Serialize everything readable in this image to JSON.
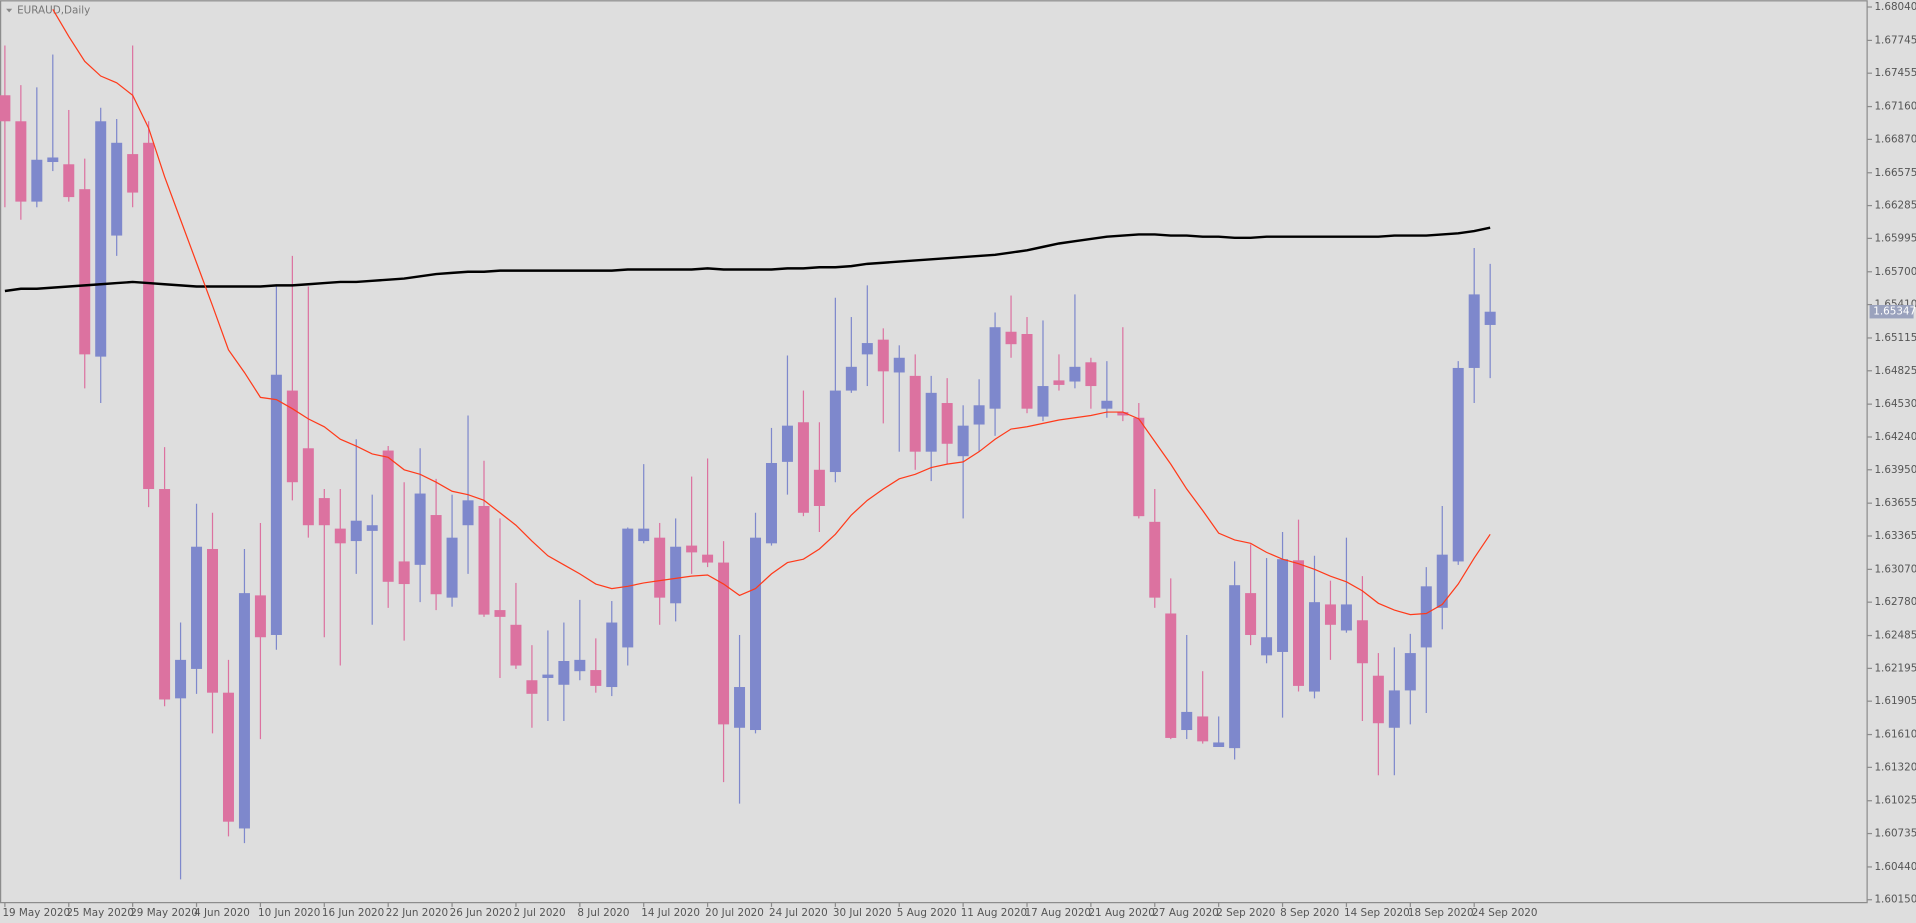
{
  "chart_data": {
    "type": "candlestick",
    "title": "EURAUD,Daily",
    "categories": [
      "19 May 2020",
      null,
      null,
      null,
      "25 May 2020",
      null,
      null,
      null,
      "29 May 2020",
      null,
      null,
      null,
      "4 Jun 2020",
      null,
      null,
      null,
      "10 Jun 2020",
      null,
      null,
      null,
      "16 Jun 2020",
      null,
      null,
      null,
      "22 Jun 2020",
      null,
      null,
      null,
      "26 Jun 2020",
      null,
      null,
      null,
      "2 Jul 2020",
      null,
      null,
      null,
      "8 Jul 2020",
      null,
      null,
      null,
      "14 Jul 2020",
      null,
      null,
      null,
      "20 Jul 2020",
      null,
      null,
      null,
      "24 Jul 2020",
      null,
      null,
      null,
      "30 Jul 2020",
      null,
      null,
      null,
      "5 Aug 2020",
      null,
      null,
      null,
      "11 Aug 2020",
      null,
      null,
      null,
      "17 Aug 2020",
      null,
      null,
      null,
      "21 Aug 2020",
      null,
      null,
      null,
      "27 Aug 2020",
      null,
      null,
      null,
      "2 Sep 2020",
      null,
      null,
      null,
      "8 Sep 2020",
      null,
      null,
      null,
      "14 Sep 2020",
      null,
      null,
      null,
      "18 Sep 2020",
      null,
      null,
      null,
      "24 Sep 2020",
      null
    ],
    "open": [
      1.6726,
      1.6703,
      1.6632,
      1.6667,
      1.6665,
      1.6643,
      1.6495,
      1.6602,
      1.6674,
      1.6684,
      1.6378,
      1.6193,
      1.6219,
      1.6325,
      1.6198,
      1.6078,
      1.6284,
      1.6249,
      1.6465,
      1.6414,
      1.637,
      1.6343,
      1.6332,
      1.6341,
      1.6412,
      1.6314,
      1.6311,
      1.6355,
      1.6282,
      1.6346,
      1.6363,
      1.6271,
      1.6258,
      1.6209,
      1.6211,
      1.6205,
      1.6217,
      1.6218,
      1.6203,
      1.6238,
      1.6332,
      1.6335,
      1.6277,
      1.6328,
      1.632,
      1.6313,
      1.6167,
      1.6165,
      1.633,
      1.6402,
      1.6437,
      1.6395,
      1.6393,
      1.6465,
      1.6497,
      1.651,
      1.6481,
      1.6478,
      1.6411,
      1.6454,
      1.6407,
      1.6435,
      1.6449,
      1.6517,
      1.6515,
      1.6442,
      1.6474,
      1.6473,
      1.649,
      1.6449,
      1.6446,
      1.6441,
      1.6349,
      1.6268,
      1.6165,
      1.6177,
      1.615,
      1.6149,
      1.6286,
      1.6231,
      1.6234,
      1.6315,
      1.6199,
      1.6276,
      1.6253,
      1.6262,
      1.6213,
      1.6167,
      1.62,
      1.6238,
      1.6273,
      1.6314,
      1.6485,
      1.6523
    ],
    "high": [
      1.677,
      1.6735,
      1.6733,
      1.6762,
      1.6713,
      1.667,
      1.6715,
      1.6705,
      1.677,
      1.6703,
      1.6415,
      1.626,
      1.6365,
      1.6357,
      1.6227,
      1.6325,
      1.6348,
      1.6557,
      1.6584,
      1.6557,
      1.6378,
      1.6378,
      1.6422,
      1.6373,
      1.6416,
      1.6384,
      1.6414,
      1.6387,
      1.6373,
      1.6443,
      1.6403,
      1.6352,
      1.6295,
      1.624,
      1.6253,
      1.626,
      1.628,
      1.6246,
      1.6279,
      1.6344,
      1.64,
      1.6348,
      1.6352,
      1.6389,
      1.6405,
      1.6332,
      1.6249,
      1.6357,
      1.6432,
      1.6496,
      1.6465,
      1.6437,
      1.6547,
      1.653,
      1.6558,
      1.652,
      1.6505,
      1.6497,
      1.6478,
      1.6476,
      1.6452,
      1.6475,
      1.6534,
      1.6549,
      1.653,
      1.6527,
      1.6497,
      1.655,
      1.6494,
      1.6491,
      1.6521,
      1.6454,
      1.6378,
      1.6299,
      1.6249,
      1.6217,
      1.6177,
      1.6314,
      1.6329,
      1.6317,
      1.634,
      1.6351,
      1.6319,
      1.6297,
      1.6335,
      1.6301,
      1.6233,
      1.6238,
      1.625,
      1.6309,
      1.6363,
      1.6491,
      1.6591,
      1.6577
    ],
    "low": [
      1.6627,
      1.6616,
      1.6627,
      1.6659,
      1.6632,
      1.6467,
      1.6454,
      1.6584,
      1.6627,
      1.6362,
      1.6186,
      1.6033,
      1.6197,
      1.6162,
      1.6071,
      1.6065,
      1.6157,
      1.6236,
      1.6368,
      1.6335,
      1.6247,
      1.6222,
      1.6303,
      1.6258,
      1.6273,
      1.6244,
      1.6278,
      1.6271,
      1.6274,
      1.6303,
      1.6265,
      1.6211,
      1.6219,
      1.6167,
      1.6173,
      1.6173,
      1.6209,
      1.6198,
      1.6195,
      1.6222,
      1.633,
      1.6258,
      1.6261,
      1.6303,
      1.6309,
      1.6119,
      1.61,
      1.6162,
      1.6328,
      1.6373,
      1.6354,
      1.634,
      1.6384,
      1.6463,
      1.6469,
      1.6436,
      1.6411,
      1.6395,
      1.6385,
      1.64,
      1.6352,
      1.6411,
      1.6425,
      1.6494,
      1.6445,
      1.6438,
      1.6465,
      1.6467,
      1.6449,
      1.6441,
      1.6438,
      1.6352,
      1.6273,
      1.6157,
      1.6157,
      1.6153,
      1.615,
      1.6139,
      1.624,
      1.6224,
      1.6176,
      1.6199,
      1.6193,
      1.6227,
      1.6251,
      1.6173,
      1.6125,
      1.6125,
      1.617,
      1.618,
      1.6254,
      1.6311,
      1.6454,
      1.6476
    ],
    "close": [
      1.6703,
      1.6632,
      1.6669,
      1.6671,
      1.6636,
      1.6497,
      1.6703,
      1.6684,
      1.664,
      1.6378,
      1.6192,
      1.6227,
      1.6327,
      1.6198,
      1.6084,
      1.6286,
      1.6247,
      1.6479,
      1.6384,
      1.6346,
      1.6346,
      1.633,
      1.635,
      1.6346,
      1.6296,
      1.6294,
      1.6374,
      1.6285,
      1.6335,
      1.6368,
      1.6267,
      1.6265,
      1.6222,
      1.6197,
      1.6214,
      1.6226,
      1.6227,
      1.6204,
      1.626,
      1.6343,
      1.6343,
      1.6282,
      1.6327,
      1.6322,
      1.6313,
      1.617,
      1.6203,
      1.6335,
      1.6401,
      1.6434,
      1.6357,
      1.6363,
      1.6465,
      1.6486,
      1.6507,
      1.6482,
      1.6494,
      1.6411,
      1.6463,
      1.6418,
      1.6434,
      1.6452,
      1.6521,
      1.6506,
      1.6449,
      1.6469,
      1.647,
      1.6486,
      1.6469,
      1.6456,
      1.6443,
      1.6354,
      1.6282,
      1.6158,
      1.6181,
      1.6155,
      1.6154,
      1.6293,
      1.6249,
      1.6247,
      1.6316,
      1.6204,
      1.6278,
      1.6258,
      1.6276,
      1.6224,
      1.6171,
      1.62,
      1.6233,
      1.6292,
      1.632,
      1.6485,
      1.655,
      1.65347
    ],
    "bull_color": "#7e88cc",
    "bear_color": "#dc72a0",
    "overlays": [
      {
        "color": "#000000",
        "values": [
          1.6553,
          1.6555,
          1.6555,
          1.6556,
          1.6557,
          1.6558,
          1.6559,
          1.656,
          1.6561,
          1.656,
          1.6559,
          1.6558,
          1.6557,
          1.6557,
          1.6557,
          1.6557,
          1.6557,
          1.6558,
          1.6558,
          1.6559,
          1.656,
          1.6561,
          1.6561,
          1.6562,
          1.6563,
          1.6564,
          1.6566,
          1.6568,
          1.6569,
          1.657,
          1.657,
          1.6571,
          1.6571,
          1.6571,
          1.6571,
          1.6571,
          1.6571,
          1.6571,
          1.6571,
          1.6572,
          1.6572,
          1.6572,
          1.6572,
          1.6572,
          1.6573,
          1.6572,
          1.6572,
          1.6572,
          1.6572,
          1.6573,
          1.6573,
          1.6574,
          1.6574,
          1.6575,
          1.6577,
          1.6578,
          1.6579,
          1.658,
          1.6581,
          1.6582,
          1.6583,
          1.6584,
          1.6585,
          1.6587,
          1.6589,
          1.6592,
          1.6595,
          1.6597,
          1.6599,
          1.6601,
          1.6602,
          1.6603,
          1.6603,
          1.6602,
          1.6602,
          1.6601,
          1.6601,
          1.66,
          1.66,
          1.6601,
          1.6601,
          1.6601,
          1.6601,
          1.6601,
          1.6601,
          1.6601,
          1.6601,
          1.6602,
          1.6602,
          1.6602,
          1.6603,
          1.6604,
          1.6606,
          1.6609
        ]
      },
      {
        "color": "#ff3a1a",
        "values": [
          null,
          null,
          null,
          1.6802,
          1.6778,
          1.6756,
          1.6743,
          1.6737,
          1.6726,
          1.6697,
          1.6654,
          1.6616,
          1.6578,
          1.654,
          1.6501,
          1.6481,
          1.6459,
          1.6457,
          1.6449,
          1.644,
          1.6433,
          1.6422,
          1.6416,
          1.6409,
          1.6406,
          1.6395,
          1.6391,
          1.6384,
          1.6376,
          1.6373,
          1.6368,
          1.6357,
          1.6346,
          1.6332,
          1.6319,
          1.6311,
          1.6303,
          1.6294,
          1.629,
          1.6292,
          1.6295,
          1.6297,
          1.6299,
          1.6301,
          1.6302,
          1.6294,
          1.6284,
          1.629,
          1.6303,
          1.6313,
          1.6316,
          1.6325,
          1.6338,
          1.6355,
          1.6368,
          1.6378,
          1.6387,
          1.6391,
          1.6397,
          1.64,
          1.6402,
          1.6411,
          1.6422,
          1.6431,
          1.6433,
          1.6436,
          1.6439,
          1.6441,
          1.6443,
          1.6446,
          1.6446,
          1.644,
          1.642,
          1.64,
          1.6378,
          1.6359,
          1.6339,
          1.6333,
          1.633,
          1.6322,
          1.6316,
          1.6312,
          1.6307,
          1.6301,
          1.6296,
          1.6288,
          1.6277,
          1.6271,
          1.6267,
          1.6268,
          1.6276,
          1.6294,
          1.6317,
          1.6338
        ]
      }
    ],
    "ylim": [
      1.6013,
      1.681
    ],
    "yticks": [
      {
        "value": 1.6804,
        "label": "1.68040"
      },
      1.67745,
      1.67455,
      {
        "value": 1.6716,
        "label": "1.67160"
      },
      {
        "value": 1.6687,
        "label": "1.66870"
      },
      1.66575,
      1.66285,
      1.65995,
      {
        "value": 1.657,
        "label": "1.65700"
      },
      {
        "value": 1.6541,
        "label": "1.65410"
      },
      1.65115,
      1.64825,
      {
        "value": 1.6453,
        "label": "1.64530"
      },
      {
        "value": 1.6424,
        "label": "1.64240"
      },
      {
        "value": 1.6395,
        "label": "1.63950"
      },
      1.63655,
      1.63365,
      {
        "value": 1.6307,
        "label": "1.63070"
      },
      {
        "value": 1.6278,
        "label": "1.62780"
      },
      1.62485,
      1.62195,
      1.61905,
      {
        "value": 1.6161,
        "label": "1.61610"
      },
      {
        "value": 1.6132,
        "label": "1.61320"
      },
      1.61025,
      1.60735,
      {
        "value": 1.6044,
        "label": "1.60440"
      },
      {
        "value": 1.6015,
        "label": "1.60150"
      }
    ],
    "grid": false
  }
}
